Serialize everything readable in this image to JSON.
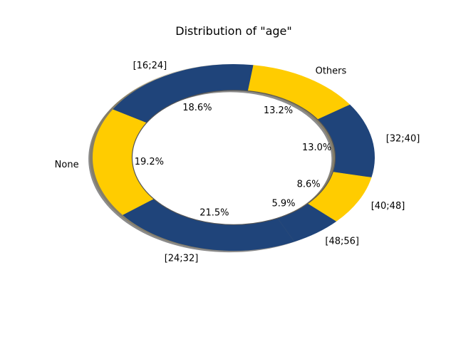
{
  "chart_data": {
    "type": "pie",
    "variant": "donut",
    "title": "Distribution of \"age\"",
    "categories": [
      "Others",
      "[16;24]",
      "None",
      "[24;32]",
      "[48;56]",
      "[40;48]",
      "[32;40]"
    ],
    "values": [
      13.2,
      18.6,
      19.2,
      21.5,
      5.9,
      8.6,
      13.0
    ],
    "value_labels": [
      "13.2%",
      "18.6%",
      "19.2%",
      "21.5%",
      "5.9%",
      "8.6%",
      "13.0%"
    ],
    "colors": [
      "#ffcc00",
      "#1f447a",
      "#ffcc00",
      "#1f447a",
      "#1f447a",
      "#ffcc00",
      "#1f447a"
    ],
    "start_angle_deg": 34.5,
    "direction": "counterclockwise",
    "shadow": true,
    "legend": "none"
  }
}
